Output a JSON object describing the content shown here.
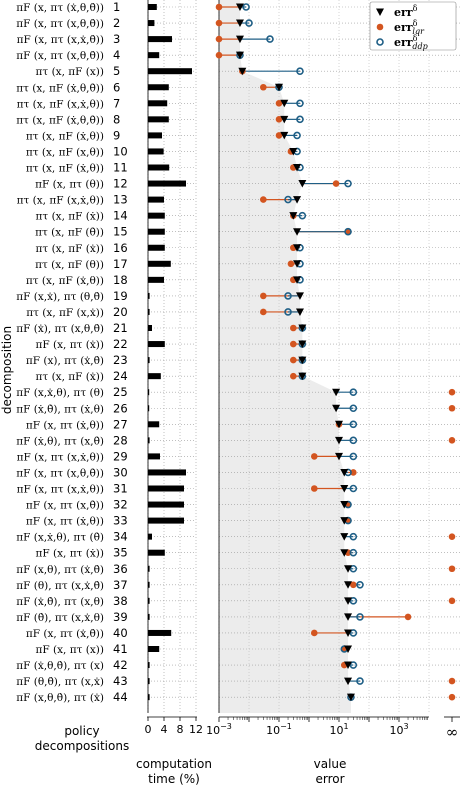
{
  "chart_data": [
    {
      "id": "computation-time",
      "type": "bar",
      "title": "",
      "xlabel": "computation time (%)",
      "ylabel": "decomposition",
      "xlim": [
        0,
        12
      ],
      "xticks": [
        0,
        4,
        8,
        12
      ],
      "xtick_labels": [
        "0",
        "4",
        "8",
        "12"
      ],
      "grid": true,
      "categories": [
        "1",
        "2",
        "3",
        "4",
        "5",
        "6",
        "7",
        "8",
        "9",
        "10",
        "11",
        "12",
        "13",
        "14",
        "15",
        "16",
        "17",
        "18",
        "19",
        "20",
        "21",
        "22",
        "23",
        "24",
        "25",
        "26",
        "27",
        "28",
        "29",
        "30",
        "31",
        "32",
        "33",
        "34",
        "35",
        "36",
        "37",
        "38",
        "39",
        "40",
        "41",
        "42",
        "43",
        "44"
      ],
      "decomposition_labels": [
        "πF (x, πτ (ẋ,θ,θ̇))",
        "πF (x, πτ (x,θ,θ̇))",
        "πF (x, πτ (x,ẋ,θ̇))",
        "πF (x, πτ (x,θ,θ̇))",
        "πτ (x, πF (x))",
        "πτ (x, πF (ẋ,θ,θ̇))",
        "πτ (x, πF (x,ẋ,θ))",
        "πτ (x, πF (ẋ,θ,θ̇))",
        "πτ (x, πF (ẋ,θ))",
        "πτ (x, πF (x,θ))",
        "πτ (x, πF (ẋ,θ))",
        "πF (x, πτ (θ))",
        "πτ (x, πF (x,ẋ,θ))",
        "πτ (x, πF (ẋ))",
        "πτ (x, πF (θ̇))",
        "πτ (x, πF (ẋ))",
        "πτ (x, πF (θ))",
        "πτ (x, πF (ẋ,θ))",
        "πF (x,ẋ), πτ (θ,θ̇)",
        "πτ (x, πF (x,ẋ))",
        "πF (ẋ), πτ (x,θ,θ̇)",
        "πF (x, πτ (ẋ))",
        "πF (x), πτ (ẋ,θ̇)",
        "πτ (x, πF (ẋ))",
        "πF (x,ẋ,θ), πτ (θ)",
        "πF (ẋ,θ̇), πτ (ẋ,θ)",
        "πF (x, πτ (ẋ,θ))",
        "πF (ẋ,θ), πτ (x,θ̇)",
        "πF (x, πτ (x,ẋ,θ))",
        "πF (x, πτ (x,θ,θ̇))",
        "πF (x, πτ (x,ẋ,θ))",
        "πF (x, πτ (x,θ̇))",
        "πF (x, πτ (ẋ,θ))",
        "πF (x,ẋ,θ), πτ (θ̇)",
        "πF (x, πτ (ẋ))",
        "πF (x,θ), πτ (ẋ,θ̇)",
        "πF (θ), πτ (x,ẋ,θ̇)",
        "πF (ẋ,θ̇), πτ (x,θ)",
        "πF (θ̇), πτ (x,ẋ,θ)",
        "πF (x, πτ (ẋ,θ̇))",
        "πF (x, πτ (x))",
        "πF (ẋ,θ,θ̇), πτ (x)",
        "πF (θ,θ̇), πτ (x,ẋ)",
        "πF (x,θ,θ̇), πτ (ẋ)"
      ],
      "values": [
        2.2,
        1.6,
        6.0,
        2.8,
        11.0,
        5.2,
        4.8,
        5.2,
        3.5,
        3.9,
        5.3,
        9.5,
        4.0,
        4.2,
        4.2,
        4.2,
        5.7,
        4.0,
        0.4,
        0.4,
        1.0,
        4.2,
        0.4,
        3.2,
        0.3,
        0.3,
        2.8,
        0.4,
        3.0,
        9.5,
        9.0,
        9.0,
        9.0,
        1.0,
        4.2,
        0.4,
        0.4,
        0.4,
        0.4,
        5.8,
        2.8,
        0.4,
        0.4,
        0.4
      ]
    },
    {
      "id": "value-error",
      "type": "scatter",
      "title": "",
      "xlabel": "value error",
      "xscale": "log",
      "xlim": [
        0.001,
        10000
      ],
      "xticks": [
        0.001,
        0.1,
        10,
        1000
      ],
      "xtick_labels": [
        "10−3",
        "10−1",
        "10¹",
        "10³"
      ],
      "infinity_label": "∞",
      "grid": true,
      "legend_position": "top-right",
      "legend": [
        {
          "name": "err",
          "sup": "δ",
          "sub": "",
          "color": "#000000",
          "marker": "triangle-down"
        },
        {
          "name": "err",
          "sup": "δ",
          "sub": "lqr",
          "color": "#d35520",
          "marker": "filled-circle"
        },
        {
          "name": "err",
          "sup": "δ",
          "sub": "ddp",
          "color": "#1f5f86",
          "marker": "open-circle"
        }
      ],
      "shaded_region_err_delta_boundary": true,
      "series": [
        {
          "name": "errδ",
          "values": [
            0.005,
            0.005,
            0.005,
            0.005,
            0.006,
            0.1,
            0.15,
            0.15,
            0.15,
            0.3,
            0.4,
            0.6,
            0.4,
            0.3,
            0.4,
            0.4,
            0.4,
            0.4,
            0.5,
            0.5,
            0.6,
            0.6,
            0.6,
            0.6,
            8,
            8,
            10,
            10,
            10,
            15,
            15,
            15,
            15,
            15,
            15,
            20,
            20,
            20,
            20,
            20,
            20,
            20,
            20,
            25
          ]
        },
        {
          "name": "errδ lqr",
          "values": [
            0.001,
            0.001,
            0.001,
            0.001,
            0.006,
            0.03,
            0.1,
            0.1,
            0.1,
            0.25,
            0.3,
            8,
            0.03,
            0.3,
            20,
            0.3,
            0.25,
            0.3,
            0.03,
            0.03,
            0.3,
            0.3,
            0.3,
            0.3,
            "inf",
            "inf",
            10,
            "inf",
            1.5,
            30,
            1.5,
            20,
            20,
            "inf",
            20,
            "inf",
            30,
            "inf",
            2000,
            1.5,
            15,
            15,
            "inf",
            "inf"
          ]
        },
        {
          "name": "errδ ddp",
          "values": [
            0.008,
            0.01,
            0.05,
            0.005,
            0.5,
            0.1,
            0.5,
            0.5,
            0.4,
            0.4,
            0.5,
            20,
            0.2,
            0.6,
            20,
            0.5,
            0.5,
            0.5,
            0.2,
            0.2,
            0.6,
            0.6,
            0.6,
            0.6,
            30,
            30,
            30,
            30,
            30,
            20,
            30,
            20,
            20,
            30,
            30,
            30,
            50,
            30,
            50,
            30,
            15,
            30,
            50,
            25
          ]
        }
      ]
    }
  ],
  "labels": {
    "axis_title_decomposition": "decomposition",
    "footer_left_line1": "policy",
    "footer_left_line2": "decompositions",
    "footer_mid_line1": "computation",
    "footer_mid_line2": "time (%)",
    "footer_right_line1": "value",
    "footer_right_line2": "error"
  }
}
